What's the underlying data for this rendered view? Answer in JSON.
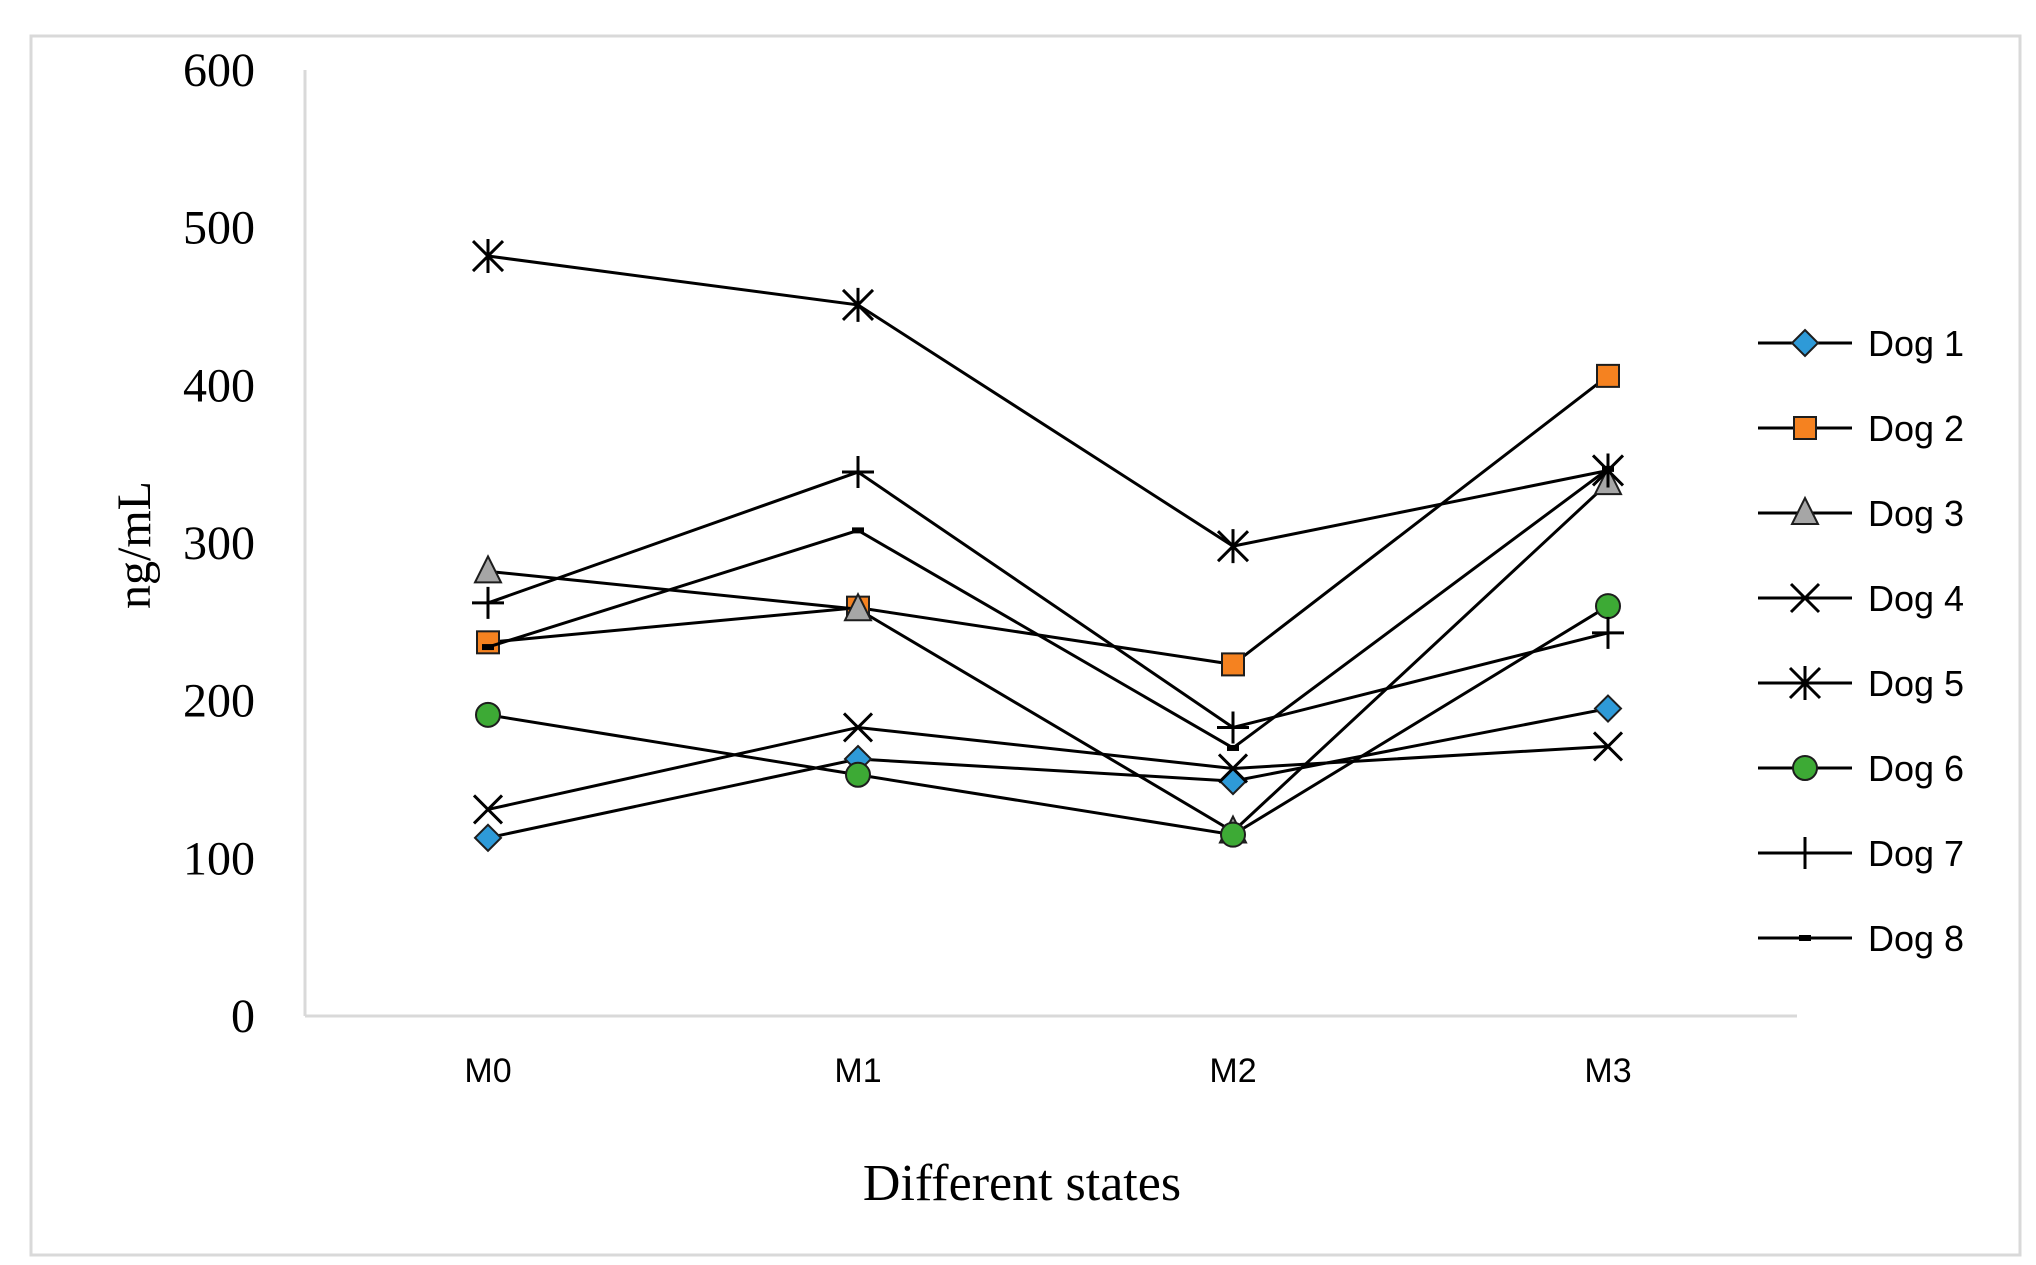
{
  "chart_data": {
    "type": "line",
    "title": "",
    "xlabel": "Different states",
    "ylabel": "ng/mL",
    "categories": [
      "M0",
      "M1",
      "M2",
      "M3"
    ],
    "ylim": [
      0,
      600
    ],
    "yticks": [
      0,
      100,
      200,
      300,
      400,
      500,
      600
    ],
    "grid": false,
    "legend_position": "right",
    "series": [
      {
        "name": "Dog 1",
        "marker": "diamond",
        "color": "#2E9AD8",
        "values": [
          113,
          163,
          149,
          195
        ]
      },
      {
        "name": "Dog 2",
        "marker": "square",
        "color": "#F58220",
        "values": [
          237,
          259,
          223,
          406
        ]
      },
      {
        "name": "Dog 3",
        "marker": "triangle",
        "color": "#A6A6A6",
        "values": [
          282,
          258,
          117,
          338
        ]
      },
      {
        "name": "Dog 4",
        "marker": "x",
        "color": "#000000",
        "values": [
          131,
          183,
          157,
          171
        ]
      },
      {
        "name": "Dog 5",
        "marker": "star",
        "color": "#000000",
        "values": [
          482,
          451,
          298,
          346
        ]
      },
      {
        "name": "Dog 6",
        "marker": "circle",
        "color": "#3DAA35",
        "values": [
          191,
          153,
          115,
          260
        ]
      },
      {
        "name": "Dog 7",
        "marker": "plus",
        "color": "#000000",
        "values": [
          262,
          345,
          183,
          243
        ]
      },
      {
        "name": "Dog 8",
        "marker": "dash",
        "color": "#000000",
        "values": [
          234,
          308,
          170,
          347
        ]
      }
    ]
  }
}
